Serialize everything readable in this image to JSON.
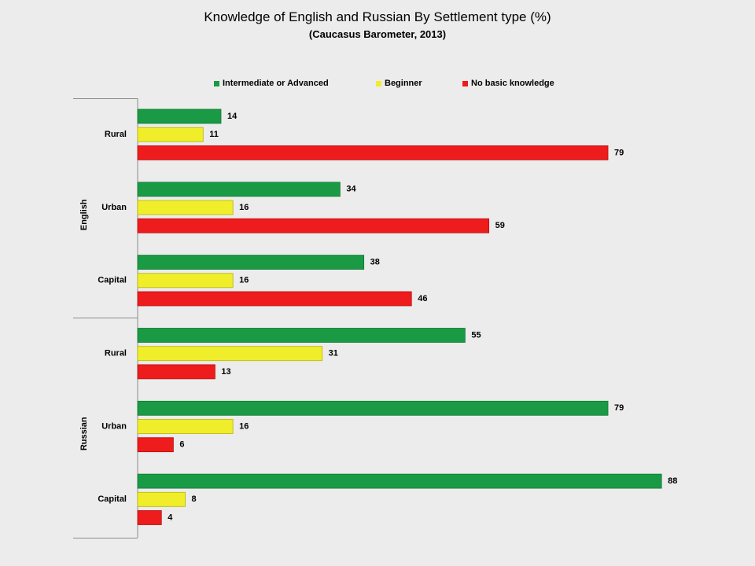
{
  "chart_data": {
    "type": "bar",
    "orientation": "horizontal",
    "title": "Knowledge of English and Russian By Settlement type (%)",
    "subtitle": "(Caucasus Barometer, 2013)",
    "legend_position": "top",
    "grid": false,
    "xlim": [
      0,
      100
    ],
    "groups": [
      {
        "name": "English",
        "categories": [
          {
            "name": "Rural",
            "values": [
              14,
              11,
              79
            ]
          },
          {
            "name": "Urban",
            "values": [
              34,
              16,
              59
            ]
          },
          {
            "name": "Capital",
            "values": [
              38,
              16,
              46
            ]
          }
        ]
      },
      {
        "name": "Russian",
        "categories": [
          {
            "name": "Rural",
            "values": [
              55,
              31,
              13
            ]
          },
          {
            "name": "Urban",
            "values": [
              79,
              16,
              6
            ]
          },
          {
            "name": "Capital",
            "values": [
              88,
              8,
              4
            ]
          }
        ]
      }
    ],
    "series": [
      {
        "name": "Intermediate or Advanced",
        "color": "#1a9a44",
        "border": "#0f7a33"
      },
      {
        "name": "Beginner",
        "color": "#f0ee2a",
        "border": "#b8b400"
      },
      {
        "name": "No basic knowledge",
        "color": "#ee1c1c",
        "border": "#b80f0f"
      }
    ]
  }
}
